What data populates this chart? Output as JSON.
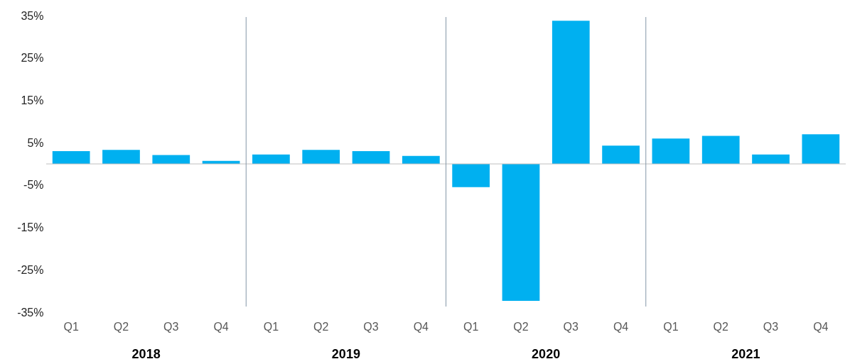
{
  "chart_data": {
    "type": "bar",
    "categories": [
      "Q1",
      "Q2",
      "Q3",
      "Q4",
      "Q1",
      "Q2",
      "Q3",
      "Q4",
      "Q1",
      "Q2",
      "Q3",
      "Q4",
      "Q1",
      "Q2",
      "Q3",
      "Q4"
    ],
    "values": [
      3.0,
      3.3,
      2.1,
      0.7,
      2.2,
      3.3,
      3.0,
      1.9,
      -5.5,
      -32.3,
      33.8,
      4.3,
      6.0,
      6.6,
      2.2,
      7.0
    ],
    "color": "#00b0f0",
    "ylim": [
      -35,
      35
    ],
    "yticks": [
      {
        "value": -35,
        "label": "-35%"
      },
      {
        "value": -25,
        "label": "-25%"
      },
      {
        "value": -15,
        "label": "-15%"
      },
      {
        "value": -5,
        "label": "-5%"
      },
      {
        "value": 5,
        "label": "5%"
      },
      {
        "value": 15,
        "label": "15%"
      },
      {
        "value": 25,
        "label": "25%"
      },
      {
        "value": 35,
        "label": "35%"
      }
    ],
    "annotations": [
      "2018",
      "2019",
      "2020",
      "2021"
    ],
    "grid": false
  }
}
